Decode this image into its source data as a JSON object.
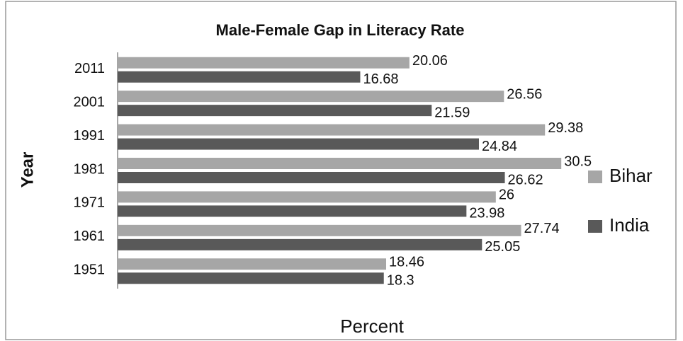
{
  "chart_data": {
    "type": "bar",
    "orientation": "horizontal",
    "title": "Male-Female Gap in Literacy Rate",
    "x_label": "Percent",
    "y_label": "Year",
    "categories": [
      "2011",
      "2001",
      "1991",
      "1981",
      "1971",
      "1961",
      "1951"
    ],
    "series": [
      {
        "name": "Bihar",
        "color": "#a6a6a6",
        "values": [
          20.06,
          26.56,
          29.38,
          30.5,
          26,
          27.74,
          18.46
        ]
      },
      {
        "name": "India",
        "color": "#595959",
        "values": [
          16.68,
          21.59,
          24.84,
          26.62,
          23.98,
          25.05,
          18.3
        ]
      }
    ],
    "xlim": [
      0,
      32
    ],
    "legend": "right"
  }
}
